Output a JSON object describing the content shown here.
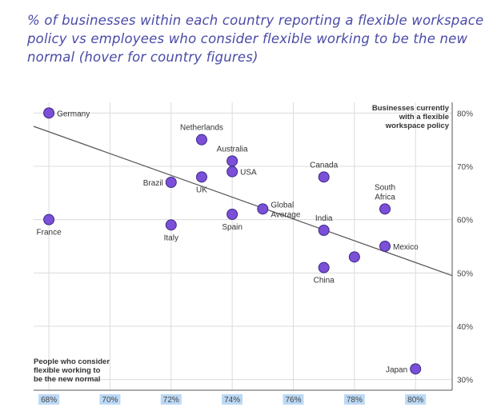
{
  "title": "% of businesses within each country reporting a flexible workspace policy vs employees who consider flexible working to be the new normal (hover for country figures)",
  "chart_data": {
    "type": "scatter",
    "title": "% of businesses within each country reporting a flexible workspace policy vs employees who consider flexible working to be the new normal (hover for country figures)",
    "xlabel": [
      "People who consider",
      "flexible working to",
      "be the new normal"
    ],
    "ylabel": [
      "Businesses currently",
      "with a flexible",
      "workspace policy"
    ],
    "xlim": [
      67.5,
      81.2
    ],
    "ylim": [
      28,
      82
    ],
    "xticks": [
      68,
      70,
      72,
      74,
      76,
      78,
      80
    ],
    "yticks": [
      30,
      40,
      50,
      60,
      70,
      80
    ],
    "tick_suffix": "%",
    "point_color": "#7b4fd6",
    "trendline": {
      "x": [
        67.5,
        81.2
      ],
      "y": [
        77.5,
        49.5
      ]
    },
    "points": [
      {
        "label": "Germany",
        "x": 68,
        "y": 80,
        "anchor": "right",
        "lines": [
          "Germany"
        ]
      },
      {
        "label": "France",
        "x": 68,
        "y": 60,
        "anchor": "below",
        "lines": [
          "France"
        ]
      },
      {
        "label": "Netherlands",
        "x": 73,
        "y": 75,
        "anchor": "above",
        "lines": [
          "Netherlands"
        ]
      },
      {
        "label": "Australia",
        "x": 74,
        "y": 71,
        "anchor": "above",
        "lines": [
          "Australia"
        ]
      },
      {
        "label": "USA",
        "x": 74,
        "y": 69,
        "anchor": "right",
        "lines": [
          "USA"
        ]
      },
      {
        "label": "UK",
        "x": 73,
        "y": 68,
        "anchor": "below",
        "lines": [
          "UK"
        ]
      },
      {
        "label": "Brazil",
        "x": 72,
        "y": 67,
        "anchor": "left",
        "lines": [
          "Brazil"
        ]
      },
      {
        "label": "Italy",
        "x": 72,
        "y": 59,
        "anchor": "below",
        "lines": [
          "Italy"
        ]
      },
      {
        "label": "Spain",
        "x": 74,
        "y": 61,
        "anchor": "below",
        "lines": [
          "Spain"
        ]
      },
      {
        "label": "Global Average",
        "x": 75,
        "y": 62,
        "anchor": "right",
        "lines": [
          "Global",
          "Average"
        ]
      },
      {
        "label": "Canada",
        "x": 77,
        "y": 68,
        "anchor": "above",
        "lines": [
          "Canada"
        ]
      },
      {
        "label": "India",
        "x": 77,
        "y": 58,
        "anchor": "above",
        "lines": [
          "India"
        ]
      },
      {
        "label": "China",
        "x": 77,
        "y": 51,
        "anchor": "below",
        "lines": [
          "China"
        ]
      },
      {
        "label": "",
        "x": 78,
        "y": 53,
        "anchor": "none",
        "lines": []
      },
      {
        "label": "South Africa",
        "x": 79,
        "y": 62,
        "anchor": "above",
        "lines": [
          "South",
          "Africa"
        ]
      },
      {
        "label": "Mexico",
        "x": 79,
        "y": 55,
        "anchor": "right",
        "lines": [
          "Mexico"
        ]
      },
      {
        "label": "Japan",
        "x": 80,
        "y": 32,
        "anchor": "left",
        "lines": [
          "Japan"
        ]
      }
    ]
  }
}
